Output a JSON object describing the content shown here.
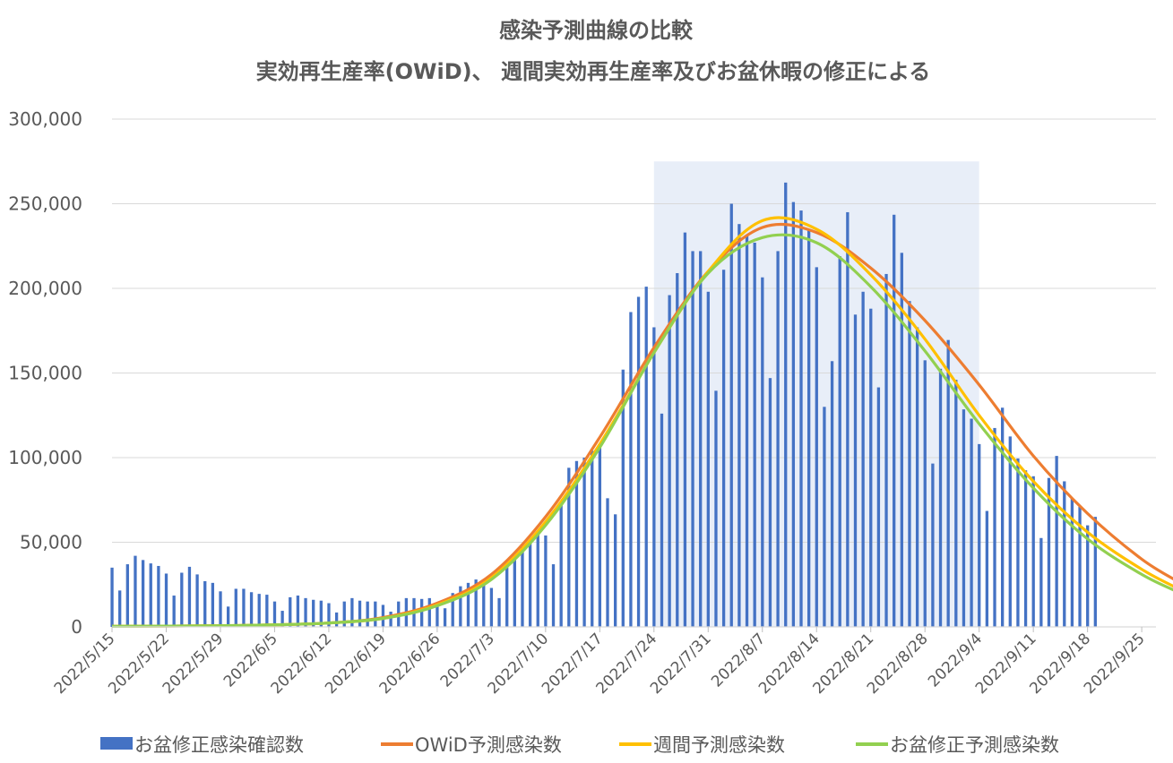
{
  "chart_data": {
    "type": "bar+line",
    "title": "感染予測曲線の比較",
    "subtitle": "実効再生産率(OWiD)、 週間実効再生産率及びお盆休暇の修正による",
    "xlabel": "",
    "ylabel": "",
    "x_start": "2022-05-15",
    "x_tick_labels": [
      "2022/5/15",
      "2022/5/22",
      "2022/5/29",
      "2022/6/5",
      "2022/6/12",
      "2022/6/19",
      "2022/6/26",
      "2022/7/3",
      "2022/7/10",
      "2022/7/17",
      "2022/7/24",
      "2022/7/31",
      "2022/8/7",
      "2022/8/14",
      "2022/8/21",
      "2022/8/28",
      "2022/9/4",
      "2022/9/11",
      "2022/9/18",
      "2022/9/25"
    ],
    "y_tick_labels": [
      "0",
      "50,000",
      "100,000",
      "150,000",
      "200,000",
      "250,000",
      "300,000"
    ],
    "ylim": [
      0,
      300000
    ],
    "grid": true,
    "legend_position": "bottom",
    "highlight_range": {
      "x_start": "2022-07-24",
      "x_end": "2022-09-04",
      "y_top": 275000,
      "color": "#E8EEF8"
    },
    "series": [
      {
        "name": "お盆修正感染確認数",
        "kind": "bar",
        "color": "#4472C4",
        "values": [
          35000,
          21500,
          37000,
          42000,
          39500,
          37500,
          36000,
          31500,
          18500,
          32000,
          35500,
          31000,
          27000,
          26000,
          21000,
          12000,
          22500,
          22500,
          20500,
          19500,
          19000,
          15000,
          9500,
          17500,
          18500,
          17000,
          16000,
          15500,
          14000,
          8500,
          15000,
          17000,
          15500,
          15000,
          15000,
          13000,
          9000,
          15000,
          17000,
          17000,
          16500,
          17000,
          14000,
          11000,
          20000,
          24000,
          26000,
          28000,
          25500,
          23000,
          17000,
          36000,
          42000,
          47000,
          50000,
          54500,
          54000,
          37000,
          74000,
          94000,
          98000,
          100000,
          104000,
          106000,
          76000,
          66500,
          152000,
          186000,
          195000,
          201000,
          177000,
          126000,
          196000,
          209000,
          233000,
          222000,
          222000,
          198000,
          139500,
          211000,
          250000,
          238000,
          231000,
          227000,
          206500,
          147000,
          222000,
          262500,
          251000,
          246000,
          235000,
          212500,
          130000,
          157000,
          219000,
          245000,
          184500,
          198000,
          188000,
          141500,
          208500,
          243500,
          221000,
          192500,
          177000,
          157500,
          96500,
          152500,
          169500,
          146000,
          128500,
          123000,
          108000,
          68500,
          117500,
          129500,
          112500,
          99500,
          92500,
          89000,
          52500,
          88000,
          101000,
          86000,
          76000,
          71000,
          60000,
          65000
        ]
      },
      {
        "name": "OWiD予測感染数",
        "kind": "line",
        "color": "#ED7D31",
        "knots_day": [
          0,
          14,
          21,
          28,
          35,
          42,
          49,
          56,
          63,
          70,
          77,
          84,
          91,
          98,
          105,
          112,
          119,
          126,
          133,
          138
        ],
        "knots_value": [
          300,
          700,
          1200,
          2300,
          5500,
          14000,
          31000,
          65000,
          112000,
          165000,
          210000,
          236000,
          233000,
          212000,
          181000,
          143000,
          101000,
          67000,
          40000,
          26000
        ]
      },
      {
        "name": "週間予測感染数",
        "kind": "line",
        "color": "#FFC000",
        "knots_day": [
          0,
          14,
          21,
          28,
          35,
          42,
          49,
          56,
          63,
          70,
          77,
          84,
          91,
          98,
          105,
          112,
          119,
          126,
          133,
          138
        ],
        "knots_value": [
          300,
          700,
          1200,
          2300,
          5000,
          13000,
          29000,
          62000,
          108000,
          162000,
          210000,
          240000,
          235000,
          208000,
          170000,
          125000,
          86000,
          56000,
          34000,
          22000
        ]
      },
      {
        "name": "お盆修正予測感染数",
        "kind": "line",
        "color": "#92D050",
        "knots_day": [
          0,
          14,
          21,
          28,
          35,
          42,
          49,
          56,
          63,
          70,
          77,
          84,
          91,
          98,
          105,
          112,
          119,
          126,
          133,
          138
        ],
        "knots_value": [
          300,
          700,
          1200,
          2300,
          5000,
          12500,
          28000,
          60000,
          106000,
          162000,
          209000,
          230000,
          227000,
          201000,
          163000,
          120000,
          82000,
          52000,
          31000,
          20000
        ]
      }
    ]
  }
}
